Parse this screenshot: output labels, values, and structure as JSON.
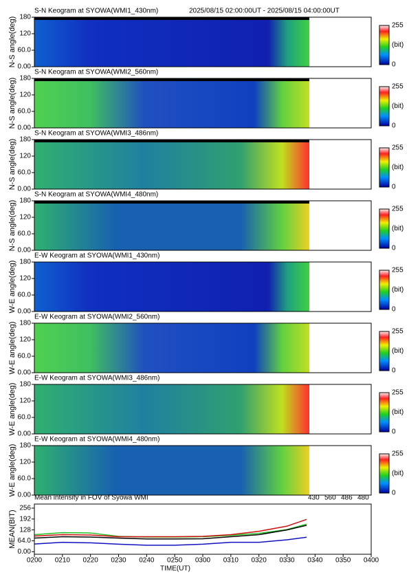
{
  "chart_data": [
    {
      "type": "keogram",
      "title": "S-N Keogram at SYOWA(WMI1_430nm)",
      "subtitle": "2025/08/15 02:00:00UT - 2025/08/15 04:00:00UT",
      "ylabel": "N-S angle(deg)",
      "ylim": [
        0,
        180
      ],
      "yticks": [
        {
          "value": 0,
          "label": "0.00"
        },
        {
          "value": 60,
          "label": "60.0"
        },
        120,
        180
      ],
      "clim": [
        0,
        255
      ],
      "cticks": [
        0,
        255
      ],
      "clabel": "(bit)"
    },
    {
      "type": "keogram",
      "title": "S-N Keogram at SYOWA(WMI2_560nm)",
      "ylabel": "N-S angle(deg)",
      "ylim": [
        0,
        180
      ],
      "yticks": [
        {
          "value": 0,
          "label": "0.00"
        },
        {
          "value": 60,
          "label": "60.0"
        },
        120,
        180
      ],
      "clim": [
        0,
        255
      ],
      "cticks": [
        0,
        255
      ],
      "clabel": "(bit)"
    },
    {
      "type": "keogram",
      "title": "S-N Keogram at SYOWA(WMI3_486nm)",
      "ylabel": "N-S angle(deg)",
      "ylim": [
        0,
        180
      ],
      "yticks": [
        {
          "value": 0,
          "label": "0.00"
        },
        {
          "value": 60,
          "label": "60.0"
        },
        120,
        180
      ],
      "clim": [
        0,
        255
      ],
      "cticks": [
        0,
        255
      ],
      "clabel": "(bit)"
    },
    {
      "type": "keogram",
      "title": "S-N Keogram at SYOWA(WMI4_480nm)",
      "ylabel": "N-S angle(deg)",
      "ylim": [
        0,
        180
      ],
      "yticks": [
        {
          "value": 0,
          "label": "0.00"
        },
        {
          "value": 60,
          "label": "60.0"
        },
        120,
        180
      ],
      "clim": [
        0,
        255
      ],
      "cticks": [
        0,
        255
      ],
      "clabel": "(bit)"
    },
    {
      "type": "keogram",
      "title": "E-W Keogram at SYOWA(WMI1_430nm)",
      "ylabel": "W-E angle(deg)",
      "ylim": [
        0,
        180
      ],
      "yticks": [
        {
          "value": 0,
          "label": "0.00"
        },
        {
          "value": 60,
          "label": "60.0"
        },
        120,
        180
      ],
      "clim": [
        0,
        255
      ],
      "cticks": [
        0,
        255
      ],
      "clabel": "(bit)"
    },
    {
      "type": "keogram",
      "title": "E-W Keogram at SYOWA(WMI2_560nm)",
      "ylabel": "W-E angle(deg)",
      "ylim": [
        0,
        180
      ],
      "yticks": [
        {
          "value": 0,
          "label": "0.00"
        },
        {
          "value": 60,
          "label": "60.0"
        },
        120,
        180
      ],
      "clim": [
        0,
        255
      ],
      "cticks": [
        0,
        255
      ],
      "clabel": "(bit)"
    },
    {
      "type": "keogram",
      "title": "E-W Keogram at SYOWA(WMI3_486nm)",
      "ylabel": "W-E angle(deg)",
      "ylim": [
        0,
        180
      ],
      "yticks": [
        {
          "value": 0,
          "label": "0.00"
        },
        {
          "value": 60,
          "label": "60.0"
        },
        120,
        180
      ],
      "clim": [
        0,
        255
      ],
      "cticks": [
        0,
        255
      ],
      "clabel": "(bit)"
    },
    {
      "type": "keogram",
      "title": "E-W Keogram at SYOWA(WMI4_480nm)",
      "ylabel": "W-E angle(deg)",
      "ylim": [
        0,
        180
      ],
      "yticks": [
        {
          "value": 0,
          "label": "0.00"
        },
        {
          "value": 60,
          "label": "60.0"
        },
        120,
        180
      ],
      "clim": [
        0,
        255
      ],
      "cticks": [
        0,
        255
      ],
      "clabel": "(bit)"
    },
    {
      "type": "line",
      "title": "Mean intensity in FOV of Syowa WMI",
      "xlabel": "TIME(UT)",
      "ylabel": "MEAN(BIT)",
      "x": [
        120,
        130,
        140,
        150,
        160,
        170,
        180,
        190,
        200,
        210,
        217
      ],
      "xlim": [
        120,
        240
      ],
      "xticks": [
        {
          "value": 120,
          "label": "0200"
        },
        {
          "value": 130,
          "label": "0210"
        },
        {
          "value": 140,
          "label": "0220"
        },
        {
          "value": 150,
          "label": "0230"
        },
        {
          "value": 160,
          "label": "0240"
        },
        {
          "value": 170,
          "label": "0250"
        },
        {
          "value": 180,
          "label": "0300"
        },
        {
          "value": 190,
          "label": "0310"
        },
        {
          "value": 200,
          "label": "0320"
        },
        {
          "value": 210,
          "label": "0330"
        },
        {
          "value": 220,
          "label": "0340"
        },
        {
          "value": 230,
          "label": "0350"
        },
        {
          "value": 240,
          "label": "0400"
        }
      ],
      "ylim": [
        -15,
        280
      ],
      "yticks": [
        {
          "value": 0,
          "label": "0.00"
        },
        {
          "value": 64,
          "label": "64.0"
        },
        128,
        192,
        256
      ],
      "series": [
        {
          "name": "430",
          "color": "#1010c0",
          "values": [
            45,
            55,
            52,
            44,
            38,
            38,
            44,
            55,
            55,
            70,
            85
          ]
        },
        {
          "name": "560",
          "color": "#20c020",
          "values": [
            100,
            112,
            110,
            90,
            86,
            86,
            88,
            96,
            108,
            130,
            162
          ]
        },
        {
          "name": "486",
          "color": "#d01010",
          "values": [
            92,
            100,
            98,
            88,
            88,
            88,
            90,
            100,
            120,
            150,
            190
          ]
        },
        {
          "name": "480",
          "color": "#000000",
          "values": [
            80,
            88,
            86,
            80,
            75,
            75,
            76,
            88,
            100,
            128,
            155
          ]
        }
      ]
    }
  ]
}
